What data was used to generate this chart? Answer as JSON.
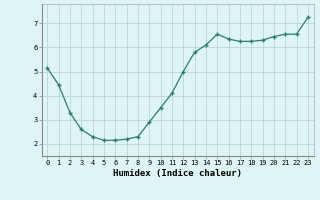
{
  "x": [
    0,
    1,
    2,
    3,
    4,
    5,
    6,
    7,
    8,
    9,
    10,
    11,
    12,
    13,
    14,
    15,
    16,
    17,
    18,
    19,
    20,
    21,
    22,
    23
  ],
  "y": [
    5.15,
    4.45,
    3.3,
    2.6,
    2.3,
    2.15,
    2.15,
    2.2,
    2.3,
    2.9,
    3.5,
    4.1,
    5.0,
    5.8,
    6.1,
    6.55,
    6.35,
    6.25,
    6.25,
    6.3,
    6.45,
    6.55,
    6.55,
    7.25
  ],
  "xlabel": "Humidex (Indice chaleur)",
  "xlim": [
    -0.5,
    23.5
  ],
  "ylim": [
    1.5,
    7.8
  ],
  "yticks": [
    2,
    3,
    4,
    5,
    6,
    7
  ],
  "xticks": [
    0,
    1,
    2,
    3,
    4,
    5,
    6,
    7,
    8,
    9,
    10,
    11,
    12,
    13,
    14,
    15,
    16,
    17,
    18,
    19,
    20,
    21,
    22,
    23
  ],
  "line_color": "#2d7d6e",
  "marker": "+",
  "bg_color": "#dff4f4",
  "grid_color": "#b8d8d8",
  "label_fontsize": 6.5,
  "tick_fontsize": 5.0
}
